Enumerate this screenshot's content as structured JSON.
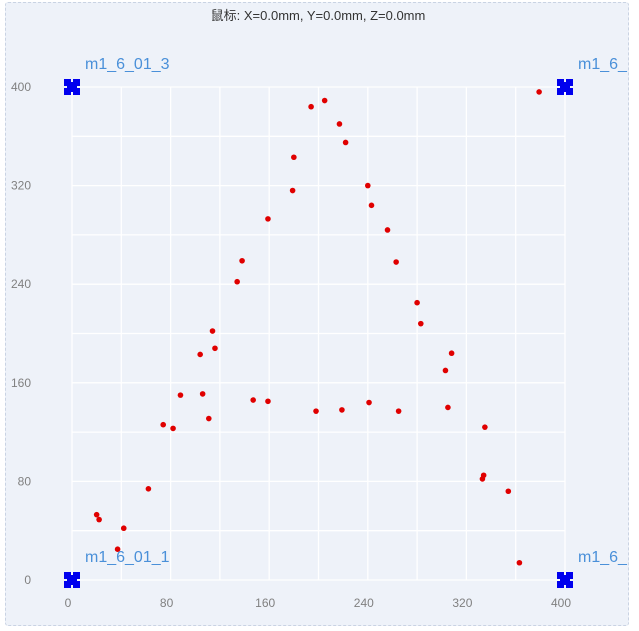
{
  "mouse_readout": "鼠标: X=0.0mm, Y=0.0mm, Z=0.0mm",
  "colors": {
    "background": "#eef2f9",
    "grid": "#ffffff",
    "point": "#e00000",
    "marker": "#0000ee",
    "marker_label": "#4a90d9"
  },
  "markers": [
    {
      "label": "m1_6_01_3",
      "x": 0,
      "y": 400,
      "icon": "corner-marker-icon",
      "label_side": "right"
    },
    {
      "label": "m1_6_",
      "x": 400,
      "y": 400,
      "icon": "corner-marker-icon",
      "label_side": "right"
    },
    {
      "label": "m1_6_01_1",
      "x": 0,
      "y": 0,
      "icon": "corner-marker-icon",
      "label_side": "right"
    },
    {
      "label": "m1_6_",
      "x": 400,
      "y": 0,
      "icon": "corner-marker-icon",
      "label_side": "right"
    }
  ],
  "chart_data": {
    "type": "scatter",
    "title": "",
    "xlabel": "",
    "ylabel": "",
    "xlim": [
      0,
      400
    ],
    "ylim": [
      0,
      400
    ],
    "x_ticks": [
      0,
      80,
      160,
      240,
      320,
      400
    ],
    "y_ticks": [
      0,
      80,
      160,
      240,
      320,
      400
    ],
    "grid": true,
    "grid_step": 40,
    "points": [
      {
        "x": 20,
        "y": 53
      },
      {
        "x": 22,
        "y": 49
      },
      {
        "x": 37,
        "y": 25
      },
      {
        "x": 42,
        "y": 42
      },
      {
        "x": 62,
        "y": 74
      },
      {
        "x": 74,
        "y": 126
      },
      {
        "x": 82,
        "y": 123
      },
      {
        "x": 88,
        "y": 150
      },
      {
        "x": 104,
        "y": 183
      },
      {
        "x": 106,
        "y": 151
      },
      {
        "x": 111,
        "y": 131
      },
      {
        "x": 114,
        "y": 202
      },
      {
        "x": 116,
        "y": 188
      },
      {
        "x": 134,
        "y": 242
      },
      {
        "x": 138,
        "y": 259
      },
      {
        "x": 147,
        "y": 146
      },
      {
        "x": 159,
        "y": 145
      },
      {
        "x": 159,
        "y": 293
      },
      {
        "x": 179,
        "y": 316
      },
      {
        "x": 180,
        "y": 343
      },
      {
        "x": 194,
        "y": 384
      },
      {
        "x": 198,
        "y": 137
      },
      {
        "x": 205,
        "y": 389
      },
      {
        "x": 217,
        "y": 370
      },
      {
        "x": 219,
        "y": 138
      },
      {
        "x": 222,
        "y": 355
      },
      {
        "x": 240,
        "y": 320
      },
      {
        "x": 241,
        "y": 144
      },
      {
        "x": 243,
        "y": 304
      },
      {
        "x": 256,
        "y": 284
      },
      {
        "x": 263,
        "y": 258
      },
      {
        "x": 265,
        "y": 137
      },
      {
        "x": 280,
        "y": 225
      },
      {
        "x": 283,
        "y": 208
      },
      {
        "x": 303,
        "y": 170
      },
      {
        "x": 305,
        "y": 140
      },
      {
        "x": 308,
        "y": 184
      },
      {
        "x": 333,
        "y": 82
      },
      {
        "x": 334,
        "y": 85
      },
      {
        "x": 335,
        "y": 124
      },
      {
        "x": 354,
        "y": 72
      },
      {
        "x": 363,
        "y": 14
      },
      {
        "x": 379,
        "y": 396
      }
    ]
  }
}
